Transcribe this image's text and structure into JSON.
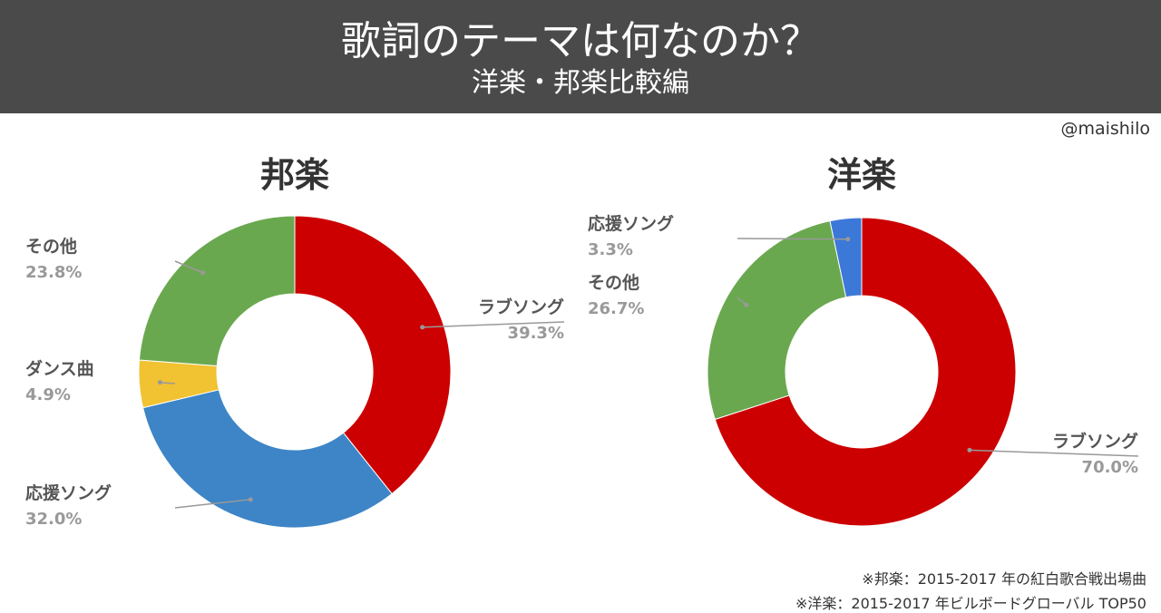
{
  "header": {
    "title": "歌詞のテーマは何なのか？",
    "subtitle": "洋楽・邦楽比較編"
  },
  "credit": "@maishilo",
  "notes": [
    "※邦楽：2015-2017 年の紅白歌合戦出場曲",
    "※洋楽：2015-2017 年ビルボードグローバル TOP50"
  ],
  "chart_data": [
    {
      "type": "pie",
      "title": "邦楽",
      "series": [
        {
          "label": "ラブソング",
          "value": 39.3,
          "display": "39.3%",
          "color": "#cc0000"
        },
        {
          "label": "応援ソング",
          "value": 32.0,
          "display": "32.0%",
          "color": "#3d85c6"
        },
        {
          "label": "ダンス曲",
          "value": 4.9,
          "display": "4.9%",
          "color": "#f1c232"
        },
        {
          "label": "その他",
          "value": 23.8,
          "display": "23.8%",
          "color": "#6aa84f"
        }
      ]
    },
    {
      "type": "pie",
      "title": "洋楽",
      "series": [
        {
          "label": "ラブソング",
          "value": 70.0,
          "display": "70.0%",
          "color": "#cc0000"
        },
        {
          "label": "その他",
          "value": 26.7,
          "display": "26.7%",
          "color": "#6aa84f"
        },
        {
          "label": "応援ソング",
          "value": 3.3,
          "display": "3.3%",
          "color": "#3c78d8"
        }
      ]
    }
  ]
}
